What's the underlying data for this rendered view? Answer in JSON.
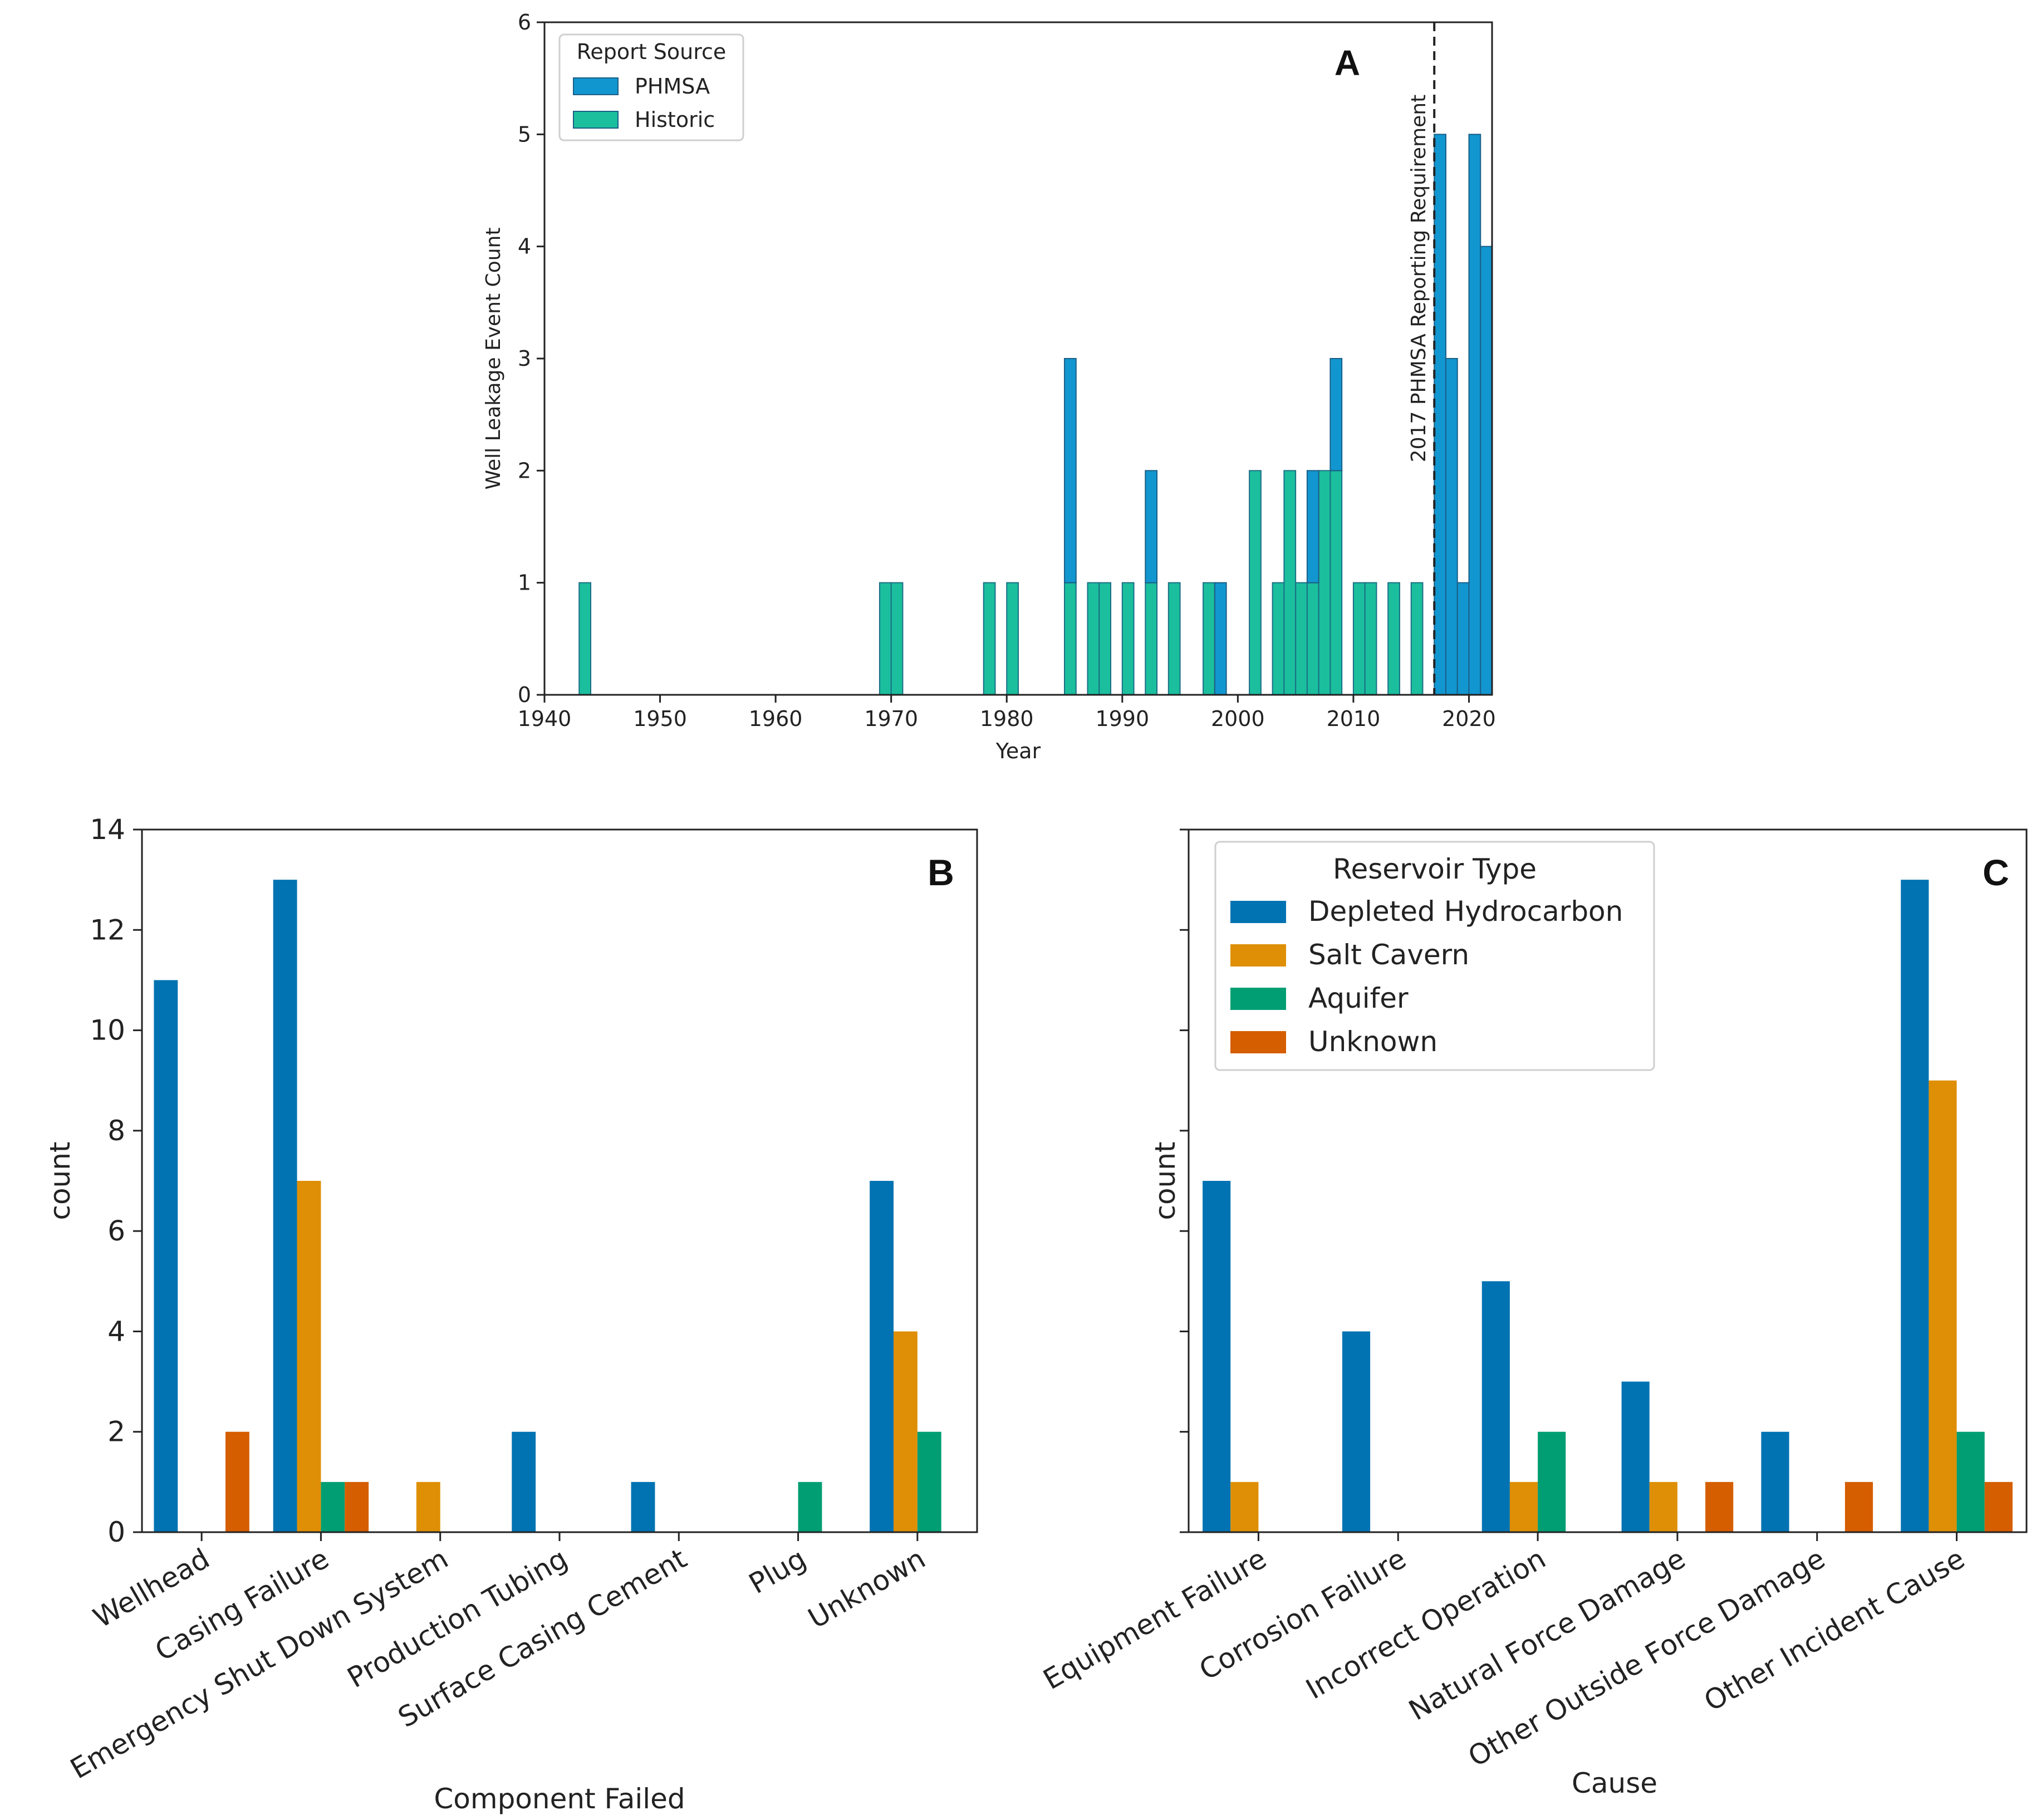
{
  "chart_data": [
    {
      "id": "A",
      "type": "bar",
      "stacked": true,
      "panel_label": "A",
      "xlabel": "Year",
      "ylabel": "Well Leakage Event Count",
      "xlim": [
        1940,
        2022
      ],
      "ylim": [
        0,
        6
      ],
      "xticks": [
        1940,
        1950,
        1960,
        1970,
        1980,
        1990,
        2000,
        2010,
        2020
      ],
      "yticks": [
        0,
        1,
        2,
        3,
        4,
        5,
        6
      ],
      "bin_width": 1,
      "legend": {
        "title": "Report Source",
        "position": "top-left",
        "entries": [
          "PHMSA",
          "Historic"
        ]
      },
      "vline": {
        "x": 2017,
        "label": "2017 PHMSA Reporting Requirement"
      },
      "series": [
        {
          "name": "Historic",
          "color": "#1bbf9d",
          "values": [
            [
              1943,
              1
            ],
            [
              1969,
              1
            ],
            [
              1970,
              1
            ],
            [
              1978,
              1
            ],
            [
              1980,
              1
            ],
            [
              1985,
              1
            ],
            [
              1987,
              1
            ],
            [
              1988,
              1
            ],
            [
              1990,
              1
            ],
            [
              1992,
              1
            ],
            [
              1994,
              1
            ],
            [
              1997,
              1
            ],
            [
              2001,
              2
            ],
            [
              2003,
              1
            ],
            [
              2004,
              2
            ],
            [
              2005,
              1
            ],
            [
              2006,
              1
            ],
            [
              2007,
              2
            ],
            [
              2008,
              2
            ],
            [
              2010,
              1
            ],
            [
              2011,
              1
            ],
            [
              2013,
              1
            ],
            [
              2015,
              1
            ]
          ]
        },
        {
          "name": "PHMSA",
          "color": "#1296d0",
          "values": [
            [
              1985,
              2
            ],
            [
              1992,
              1
            ],
            [
              1998,
              1
            ],
            [
              2006,
              1
            ],
            [
              2008,
              1
            ],
            [
              2017,
              5
            ],
            [
              2018,
              3
            ],
            [
              2019,
              1
            ],
            [
              2020,
              5
            ],
            [
              2021,
              4
            ]
          ]
        }
      ]
    },
    {
      "id": "B",
      "type": "bar",
      "panel_label": "B",
      "xlabel": "Component Failed",
      "ylabel": "count",
      "ylim": [
        0,
        14
      ],
      "yticks": [
        0,
        2,
        4,
        6,
        8,
        10,
        12,
        14
      ],
      "categories": [
        "Wellhead",
        "Casing Failure",
        "Emergency Shut Down System",
        "Production Tubing",
        "Surface Casing Cement",
        "Plug",
        "Unknown"
      ],
      "series": [
        {
          "name": "Depleted Hydrocarbon",
          "color": "#0173b2",
          "values": [
            11,
            13,
            0,
            2,
            1,
            0,
            7
          ]
        },
        {
          "name": "Salt Cavern",
          "color": "#de8f05",
          "values": [
            0,
            7,
            1,
            0,
            0,
            0,
            4
          ]
        },
        {
          "name": "Aquifer",
          "color": "#029e73",
          "values": [
            0,
            1,
            0,
            0,
            0,
            1,
            2
          ]
        },
        {
          "name": "Unknown",
          "color": "#d55e00",
          "values": [
            2,
            1,
            0,
            0,
            0,
            0,
            0
          ]
        }
      ]
    },
    {
      "id": "C",
      "type": "bar",
      "panel_label": "C",
      "xlabel": "Cause",
      "ylabel": "count",
      "ylim": [
        0,
        14
      ],
      "yticks": [
        0,
        2,
        4,
        6,
        8,
        10,
        12,
        14
      ],
      "ytick_labels_visible": false,
      "categories": [
        "Equipment Failure",
        "Corrosion Failure",
        "Incorrect Operation",
        "Natural Force Damage",
        "Other Outside Force Damage",
        "Other Incident Cause"
      ],
      "legend": {
        "title": "Reservoir Type",
        "position": "top-left",
        "entries": [
          "Depleted Hydrocarbon",
          "Salt Cavern",
          "Aquifer",
          "Unknown"
        ]
      },
      "series": [
        {
          "name": "Depleted Hydrocarbon",
          "color": "#0173b2",
          "values": [
            7,
            4,
            5,
            3,
            2,
            13
          ]
        },
        {
          "name": "Salt Cavern",
          "color": "#de8f05",
          "values": [
            1,
            0,
            1,
            1,
            0,
            9
          ]
        },
        {
          "name": "Aquifer",
          "color": "#029e73",
          "values": [
            0,
            0,
            2,
            0,
            0,
            2
          ]
        },
        {
          "name": "Unknown",
          "color": "#d55e00",
          "values": [
            0,
            0,
            0,
            1,
            1,
            1
          ]
        }
      ]
    }
  ]
}
